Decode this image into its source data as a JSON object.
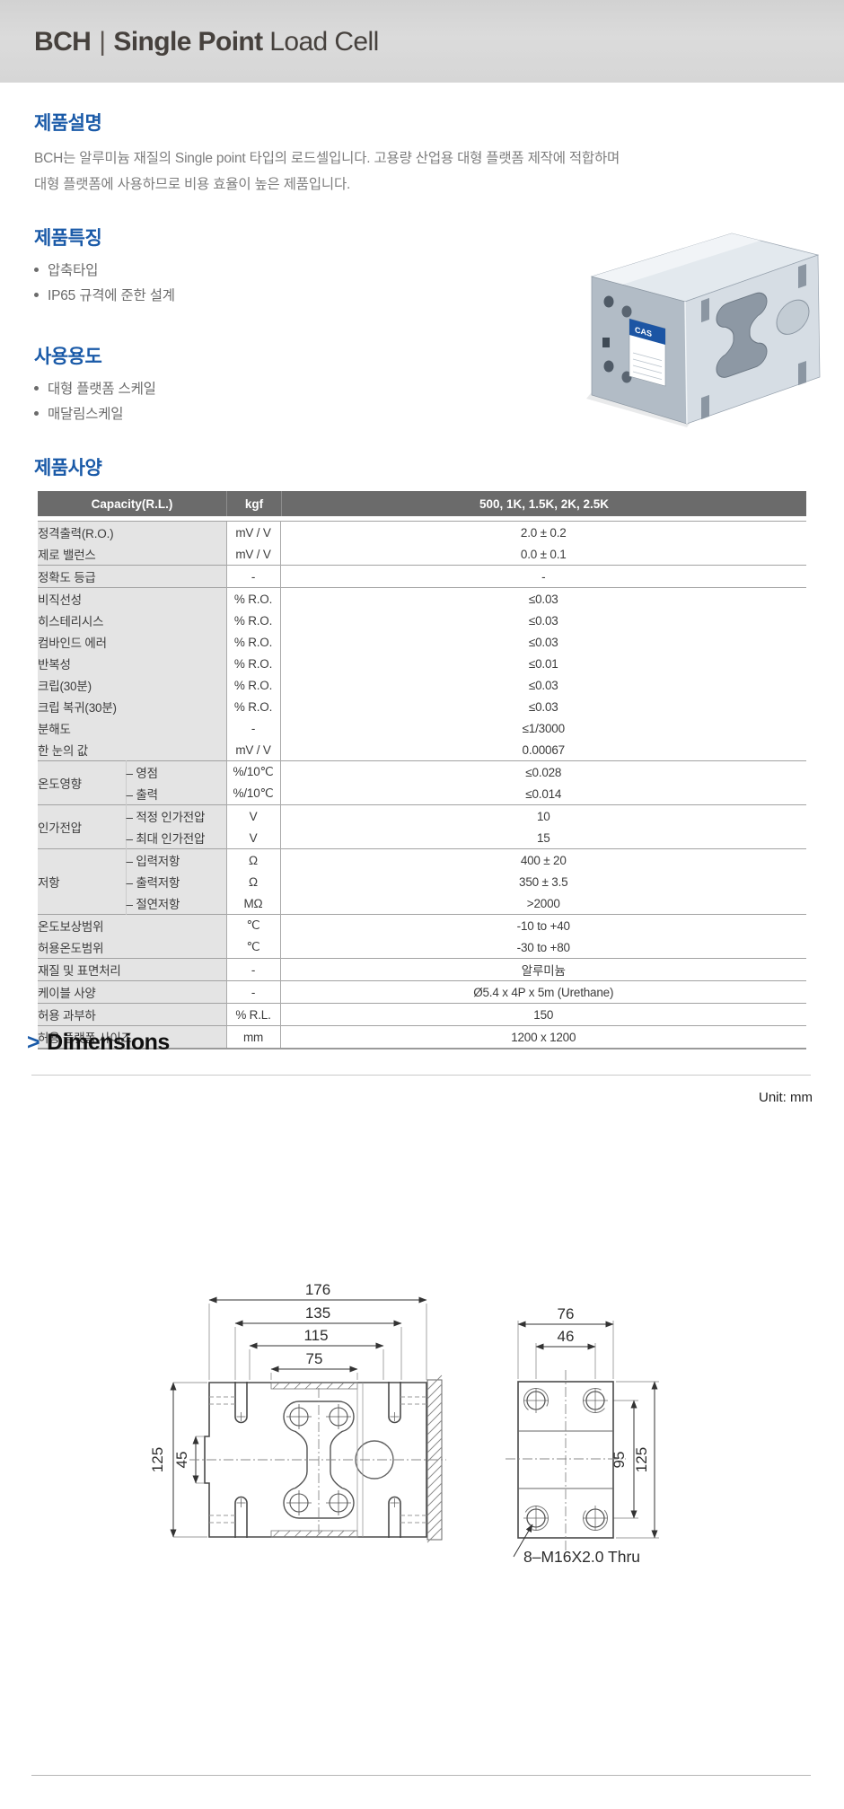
{
  "header": {
    "brand": "BCH",
    "divider": "|",
    "type_bold": "Single Point",
    "type_regular": "Load Cell"
  },
  "description": {
    "heading": "제품설명",
    "line1": "BCH는 알루미늄 재질의 Single point 타입의 로드셀입니다. 고용량 산업용 대형 플랫폼 제작에 적합하며",
    "line2": "대형 플랫폼에 사용하므로 비용 효율이 높은 제품입니다."
  },
  "features": {
    "heading": "제품특징",
    "items": [
      "압축타입",
      "IP65 규격에 준한 설계"
    ]
  },
  "applications": {
    "heading": "사용용도",
    "items": [
      "대형 플랫폼 스케일",
      "매달림스케일"
    ]
  },
  "product_photo": {
    "label_text": "CAS"
  },
  "specs": {
    "heading": "제품사양",
    "table": {
      "header": [
        "Capacity(R.L.)",
        "kgf",
        "500, 1K, 1.5K, 2K, 2.5K"
      ],
      "groups": [
        {
          "rows": [
            {
              "label": "정격출력(R.O.)",
              "unit": "mV / V",
              "value": "2.0 ± 0.2"
            },
            {
              "label": "제로 밸런스",
              "unit": "mV / V",
              "value": "0.0 ± 0.1"
            }
          ]
        },
        {
          "rows": [
            {
              "label": "정확도 등급",
              "unit": "-",
              "value": "-"
            }
          ]
        },
        {
          "rows": [
            {
              "label": "비직선성",
              "unit": "% R.O.",
              "value": "≤0.03"
            },
            {
              "label": "히스테리시스",
              "unit": "% R.O.",
              "value": "≤0.03"
            },
            {
              "label": "컴바인드 에러",
              "unit": "% R.O.",
              "value": "≤0.03"
            },
            {
              "label": "반복성",
              "unit": "% R.O.",
              "value": "≤0.01"
            },
            {
              "label": "크립(30분)",
              "unit": "% R.O.",
              "value": "≤0.03"
            },
            {
              "label": "크립 복귀(30분)",
              "unit": "% R.O.",
              "value": "≤0.03"
            },
            {
              "label": "분해도",
              "unit": "-",
              "value": "≤1/3000"
            },
            {
              "label": "한 눈의 값",
              "unit": "mV / V",
              "value": "0.00067"
            }
          ]
        },
        {
          "group": "온도영향",
          "rows": [
            {
              "sub": "– 영점",
              "unit": "%/10℃",
              "value": "≤0.028"
            },
            {
              "sub": "– 출력",
              "unit": "%/10℃",
              "value": "≤0.014"
            }
          ]
        },
        {
          "group": "인가전압",
          "rows": [
            {
              "sub": "– 적정 인가전압",
              "unit": "V",
              "value": "10"
            },
            {
              "sub": "– 최대 인가전압",
              "unit": "V",
              "value": "15"
            }
          ]
        },
        {
          "group": "저항",
          "rows": [
            {
              "sub": "– 입력저항",
              "unit": "Ω",
              "value": "400 ± 20"
            },
            {
              "sub": "– 출력저항",
              "unit": "Ω",
              "value": "350 ± 3.5"
            },
            {
              "sub": "– 절연저항",
              "unit": "MΩ",
              "value": ">2000"
            }
          ]
        },
        {
          "rows": [
            {
              "label": "온도보상범위",
              "unit": "℃",
              "value": "-10 to +40"
            },
            {
              "label": "허용온도범위",
              "unit": "℃",
              "value": "-30 to +80"
            }
          ]
        },
        {
          "rows": [
            {
              "label": "재질 및 표면처리",
              "unit": "-",
              "value": "알루미늄"
            }
          ]
        },
        {
          "rows": [
            {
              "label": "케이블 사양",
              "unit": "-",
              "value": "Ø5.4 x 4P x 5m (Urethane)"
            }
          ]
        },
        {
          "rows": [
            {
              "label": "허용 과부하",
              "unit": "% R.L.",
              "value": "150"
            }
          ]
        },
        {
          "rows": [
            {
              "label": "허용 플랫폼 사이즈",
              "unit": "mm",
              "value": "1200 x 1200"
            }
          ]
        }
      ]
    }
  },
  "dimensions": {
    "chevron": ">",
    "heading": "Dimensions",
    "unit_note": "Unit: mm",
    "front_view": {
      "top_dims": [
        "176",
        "135",
        "115",
        "75"
      ],
      "left_dims": [
        "125",
        "45"
      ]
    },
    "end_view": {
      "top_dims": [
        "76",
        "46"
      ],
      "right_dims": [
        "95",
        "125"
      ],
      "thread_note": "8–M16X2.0 Thru"
    }
  }
}
